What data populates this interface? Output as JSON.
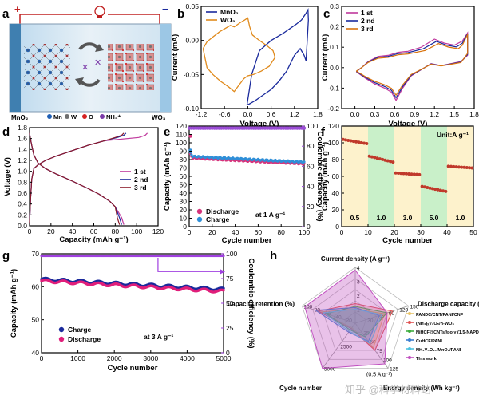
{
  "watermark": "知乎 @科学材料站",
  "panel_letters": [
    "a",
    "b",
    "c",
    "d",
    "e",
    "f",
    "g",
    "h"
  ],
  "panel_a": {
    "left_label": "MnO₂",
    "right_label": "WO₃",
    "plus": "+",
    "minus": "−",
    "legend": [
      {
        "name": "Mn",
        "color": "#1f5fb5"
      },
      {
        "name": "W",
        "color": "#6f6f6f"
      },
      {
        "name": "O",
        "color": "#d42020"
      },
      {
        "name": "NH₄⁺",
        "color": "#7b3aa8"
      }
    ]
  },
  "chart_data": [
    {
      "id": "b",
      "type": "line",
      "xlabel": "Voltage (V)",
      "ylabel": "Current (mA)",
      "xlim": [
        -1.2,
        1.8
      ],
      "ylim": [
        -0.1,
        0.05
      ],
      "xticks": [
        -1.2,
        -0.6,
        0.0,
        0.6,
        1.2,
        1.8
      ],
      "yticks": [
        -0.1,
        -0.05,
        0.0,
        0.05
      ],
      "legend_position": "top-left",
      "series": [
        {
          "name": "MnO₂",
          "color": "#1a2a9c",
          "x": [
            -0.02,
            0.1,
            0.3,
            0.6,
            0.9,
            1.1,
            1.25,
            1.38,
            1.5,
            1.55,
            1.56,
            1.5,
            1.45,
            1.35,
            1.2,
            1.0,
            0.8,
            0.6,
            0.4,
            0.2,
            0.05,
            -0.02,
            -0.02
          ],
          "y": [
            -0.095,
            -0.05,
            -0.015,
            0.0,
            0.01,
            0.018,
            0.024,
            0.03,
            0.04,
            0.045,
            0.03,
            -0.03,
            -0.022,
            -0.012,
            -0.022,
            -0.045,
            -0.06,
            -0.072,
            -0.08,
            -0.088,
            -0.093,
            -0.095,
            -0.095
          ]
        },
        {
          "name": "WO₃",
          "color": "#e08a1c",
          "x": [
            -1.15,
            -1.05,
            -0.9,
            -0.72,
            -0.6,
            -0.45,
            -0.35,
            -0.2,
            -0.08,
            0.0,
            0.05,
            0.12,
            0.3,
            0.5,
            0.65,
            0.7,
            0.55,
            0.35,
            0.15,
            0.0,
            -0.1,
            -0.22,
            -0.35,
            -0.5,
            -0.7,
            -0.9,
            -1.05,
            -1.15
          ],
          "y": [
            -0.012,
            -0.002,
            0.005,
            0.013,
            0.017,
            0.022,
            0.02,
            0.026,
            0.03,
            0.033,
            0.02,
            0.008,
            0.0,
            -0.008,
            -0.015,
            -0.025,
            -0.038,
            -0.045,
            -0.05,
            -0.052,
            -0.056,
            -0.065,
            -0.075,
            -0.068,
            -0.06,
            -0.05,
            -0.04,
            -0.012
          ]
        }
      ]
    },
    {
      "id": "c",
      "type": "line",
      "xlabel": "Voltage (V)",
      "ylabel": "Current (mA)",
      "xlim": [
        -0.2,
        1.8
      ],
      "ylim": [
        -0.2,
        0.3
      ],
      "xticks": [
        0.0,
        0.3,
        0.6,
        0.9,
        1.2,
        1.5,
        1.8
      ],
      "yticks": [
        -0.2,
        -0.1,
        0.0,
        0.1,
        0.2,
        0.3
      ],
      "legend_position": "top-left",
      "series": [
        {
          "name": "1 st",
          "color": "#c0399d"
        },
        {
          "name": "2 nd",
          "color": "#1a2a9c"
        },
        {
          "name": "3 rd",
          "color": "#d9730d"
        }
      ]
    },
    {
      "id": "d",
      "type": "line",
      "xlabel": "Capacity (mAh g⁻¹)",
      "ylabel": "Voltage (V)",
      "xlim": [
        0,
        120
      ],
      "ylim": [
        0.0,
        1.8
      ],
      "xticks": [
        0,
        20,
        40,
        60,
        80,
        100,
        120
      ],
      "yticks": [
        0.0,
        0.2,
        0.4,
        0.6,
        0.8,
        1.0,
        1.2,
        1.4,
        1.6,
        1.8
      ],
      "legend_position": "center-right",
      "series": [
        {
          "name": "1 st",
          "color": "#c0399d"
        },
        {
          "name": "2 nd",
          "color": "#1a2a9c"
        },
        {
          "name": "3 rd",
          "color": "#8b1a2a"
        }
      ]
    },
    {
      "id": "e",
      "type": "scatter",
      "xlabel": "Cycle number",
      "ylabel": "Capacity (mAh g⁻¹)",
      "y2label": "Coulombic efficiency (%)",
      "xlim": [
        0,
        100
      ],
      "ylim": [
        0,
        120
      ],
      "y2lim": [
        0,
        100
      ],
      "xticks": [
        0,
        20,
        40,
        60,
        80,
        100
      ],
      "yticks": [
        0,
        10,
        20,
        30,
        40,
        50,
        60,
        70,
        80,
        90,
        100,
        110,
        120
      ],
      "y2ticks": [
        0,
        20,
        40,
        60,
        80,
        100
      ],
      "annotation": "at 1 A g⁻¹",
      "legend_position": "bottom-left",
      "series": [
        {
          "name": "Discharge",
          "color": "#d6347c",
          "start": 82,
          "end": 75
        },
        {
          "name": "Charge",
          "color": "#2f8fd8",
          "start": 84,
          "end": 77
        },
        {
          "name": "",
          "color": "#9b4dd6",
          "efficiency": 98
        }
      ]
    },
    {
      "id": "f",
      "type": "scatter",
      "xlabel": "Cycle number",
      "ylabel": "Capacity (mAh g⁻¹)",
      "xlim": [
        0,
        50
      ],
      "ylim": [
        0,
        120
      ],
      "xticks": [
        0,
        10,
        20,
        30,
        40,
        50
      ],
      "yticks": [
        0,
        20,
        40,
        60,
        80,
        100,
        120
      ],
      "annotation": "Unit:A g⁻¹",
      "rates": [
        "0.5",
        "1.0",
        "3.0",
        "5.0",
        "1.0"
      ],
      "segments": [
        {
          "from": 1,
          "to": 10,
          "start": 104,
          "end": 99
        },
        {
          "from": 11,
          "to": 20,
          "start": 84,
          "end": 77
        },
        {
          "from": 21,
          "to": 30,
          "start": 64,
          "end": 62
        },
        {
          "from": 31,
          "to": 40,
          "start": 48,
          "end": 42
        },
        {
          "from": 41,
          "to": 50,
          "start": 72,
          "end": 70
        }
      ],
      "color": "#c0392b"
    },
    {
      "id": "g",
      "type": "scatter",
      "xlabel": "Cycle number",
      "ylabel": "Capacity (mAh g⁻¹)",
      "y2label": "Coulombic efficiency (%)",
      "xlim": [
        0,
        5000
      ],
      "ylim": [
        40,
        70
      ],
      "y2lim": [
        0,
        100
      ],
      "xticks": [
        0,
        1000,
        2000,
        3000,
        4000,
        5000
      ],
      "yticks": [
        40,
        50,
        60,
        70
      ],
      "y2ticks": [
        0,
        25,
        50,
        75,
        100
      ],
      "annotation": "at 3 A g⁻¹",
      "legend_position": "bottom-left",
      "series": [
        {
          "name": "Charge",
          "color": "#1a2a9c",
          "start": 62.3,
          "end": 59.2
        },
        {
          "name": "Discharge",
          "color": "#e01e7a",
          "start": 61.8,
          "end": 58.6
        },
        {
          "name": "",
          "color": "#a040e0",
          "efficiency": 98
        }
      ]
    },
    {
      "id": "h",
      "type": "radar",
      "axes": [
        {
          "label": "Current density (A g⁻¹)",
          "ticks": [
            "1",
            "2",
            "3",
            "4"
          ]
        },
        {
          "label": "Discharge capacity (mAh g⁻¹)",
          "ticks": [
            "30",
            "60",
            "90",
            "120",
            "150"
          ]
        },
        {
          "label": "Energy density (Wh kg⁻¹)",
          "ticks": [
            "25",
            "50",
            "75",
            "100",
            "125"
          ]
        },
        {
          "label": "Cycle number",
          "ticks": [
            "2500",
            "5000"
          ]
        },
        {
          "label": "Capacity retention (%)",
          "ticks": [
            "20",
            "40",
            "60",
            "80",
            "100"
          ]
        }
      ],
      "energy_note": "(0.5 A g⁻¹)",
      "series": [
        {
          "name": "PANDC/CNT/PANI/CNF",
          "color": "#e8c46a"
        },
        {
          "name": "(NH₄)ₓV₂O₅/h-WO₃",
          "color": "#e05050"
        },
        {
          "name": "NiHCF@CNTs//poly (1.5-NAPD)",
          "color": "#3fae3f"
        },
        {
          "name": "CuHCF/PANI",
          "color": "#3c7fd0"
        },
        {
          "name": "NH₄V₄O₁₀/MnO₂/PANI",
          "color": "#4fc3e0"
        },
        {
          "name": "This work",
          "color": "#c04fc0"
        }
      ]
    }
  ]
}
